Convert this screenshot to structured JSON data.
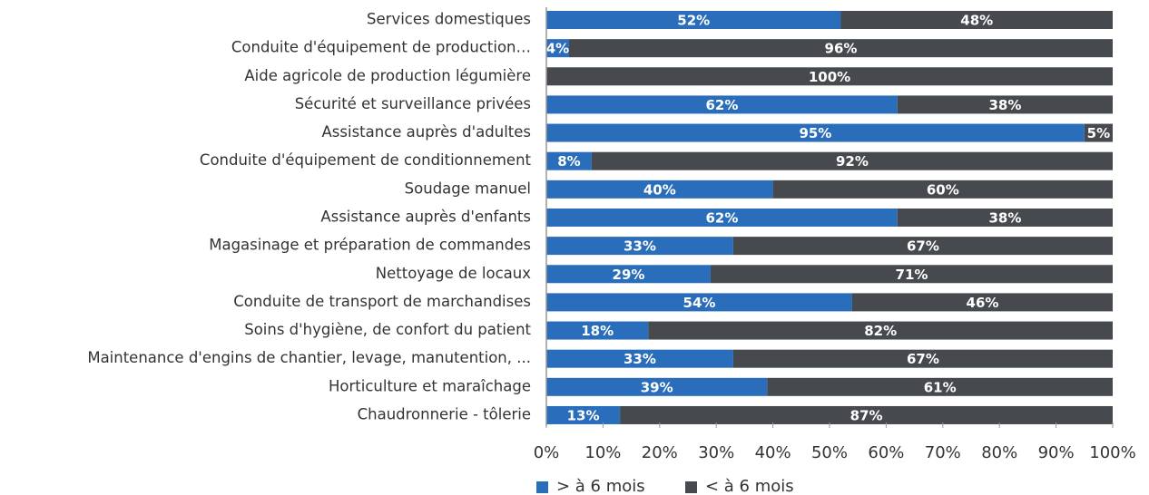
{
  "chart_data": {
    "type": "stacked_barh",
    "categories": [
      "Services domestiques",
      "Conduite d'équipement de production…",
      "Aide agricole de production légumière",
      "Sécurité et surveillance privées",
      "Assistance auprès d'adultes",
      "Conduite d'équipement de conditionnement",
      "Soudage manuel",
      "Assistance auprès d'enfants",
      "Magasinage et préparation de commandes",
      "Nettoyage de locaux",
      "Conduite de transport de marchandises",
      "Soins d'hygiène, de confort du patient",
      "Maintenance d'engins de chantier, levage, manutention, ...",
      "Horticulture et maraîchage",
      "Chaudronnerie - tôlerie"
    ],
    "series": [
      {
        "name": "> à 6 mois",
        "color": "#2a6ebb",
        "values": [
          52,
          4,
          0,
          62,
          95,
          8,
          40,
          62,
          33,
          29,
          54,
          18,
          33,
          39,
          13
        ],
        "value_labels": [
          "52%",
          "4%",
          null,
          "62%",
          "95%",
          "8%",
          "40%",
          "62%",
          "33%",
          "29%",
          "54%",
          "18%",
          "33%",
          "39%",
          "13%"
        ]
      },
      {
        "name": "< à 6 mois",
        "color": "#464a4f",
        "values": [
          48,
          96,
          100,
          38,
          5,
          92,
          60,
          38,
          67,
          71,
          46,
          82,
          67,
          61,
          87
        ],
        "value_labels": [
          "48%",
          "96%",
          "100%",
          "38%",
          "5%",
          "92%",
          "60%",
          "38%",
          "67%",
          "71%",
          "46%",
          "82%",
          "67%",
          "61%",
          "87%"
        ]
      }
    ],
    "xlim": [
      0,
      100
    ],
    "xticks": [
      {
        "value": 0,
        "label": "0%"
      },
      {
        "value": 10,
        "label": "10%"
      },
      {
        "value": 20,
        "label": "20%"
      },
      {
        "value": 30,
        "label": "30%"
      },
      {
        "value": 40,
        "label": "40%"
      },
      {
        "value": 50,
        "label": "50%"
      },
      {
        "value": 60,
        "label": "60%"
      },
      {
        "value": 70,
        "label": "70%"
      },
      {
        "value": 80,
        "label": "80%"
      },
      {
        "value": 90,
        "label": "90%"
      },
      {
        "value": 100,
        "label": "100%"
      }
    ],
    "grid": false
  }
}
